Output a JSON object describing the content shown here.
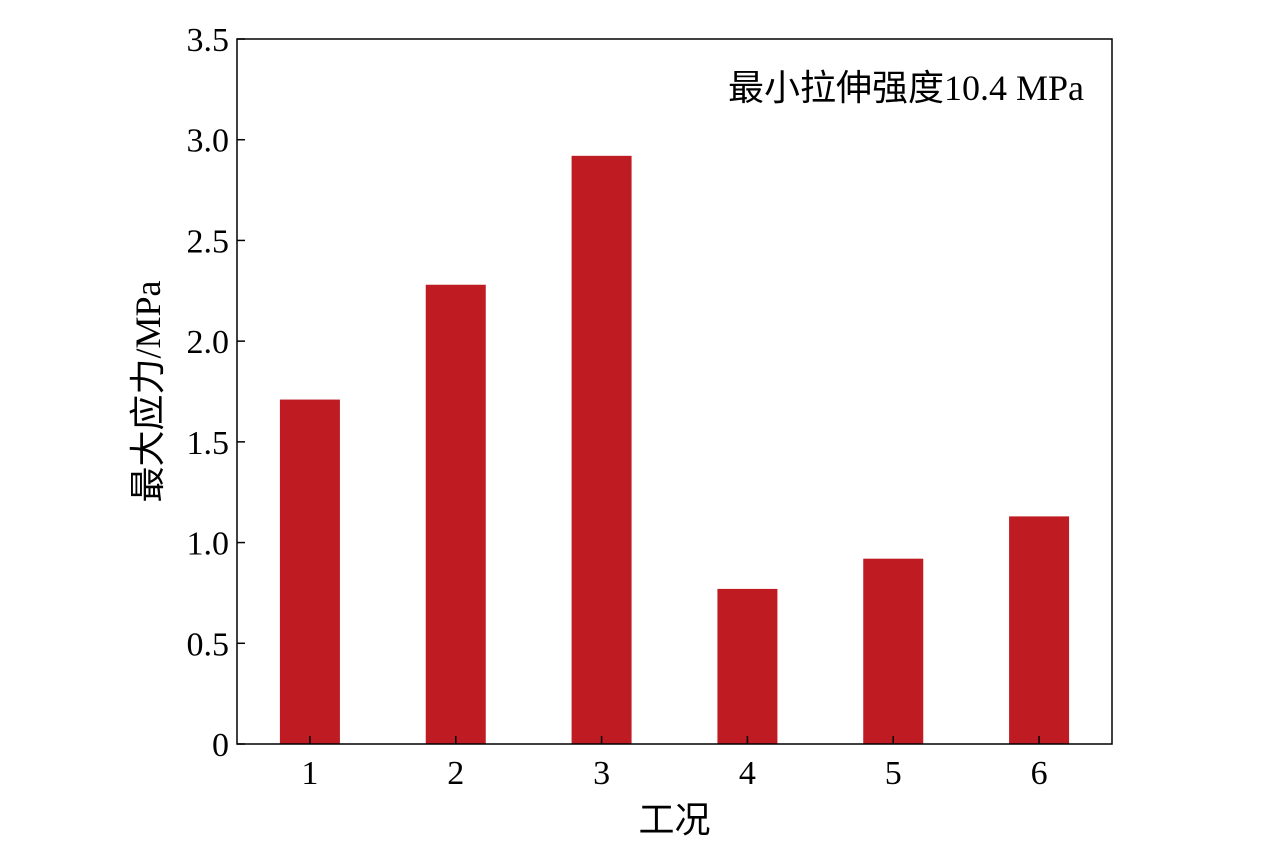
{
  "chart_data": {
    "type": "bar",
    "categories": [
      "1",
      "2",
      "3",
      "4",
      "5",
      "6"
    ],
    "values": [
      1.71,
      2.28,
      2.92,
      0.77,
      0.92,
      1.13
    ],
    "title": "",
    "xlabel": "工况",
    "ylabel": "最大应力/MPa",
    "ylim": [
      0,
      3.5
    ],
    "yticks": [
      0,
      0.5,
      1.0,
      1.5,
      2.0,
      2.5,
      3.0,
      3.5
    ],
    "ytick_labels": [
      "0",
      "0.5",
      "1.0",
      "1.5",
      "2.0",
      "2.5",
      "3.0",
      "3.5"
    ],
    "annotation": "最小拉伸强度10.4 MPa",
    "annotation_position": "top-right",
    "grid": false,
    "legend": "none",
    "bar_color": "#be1c22"
  }
}
